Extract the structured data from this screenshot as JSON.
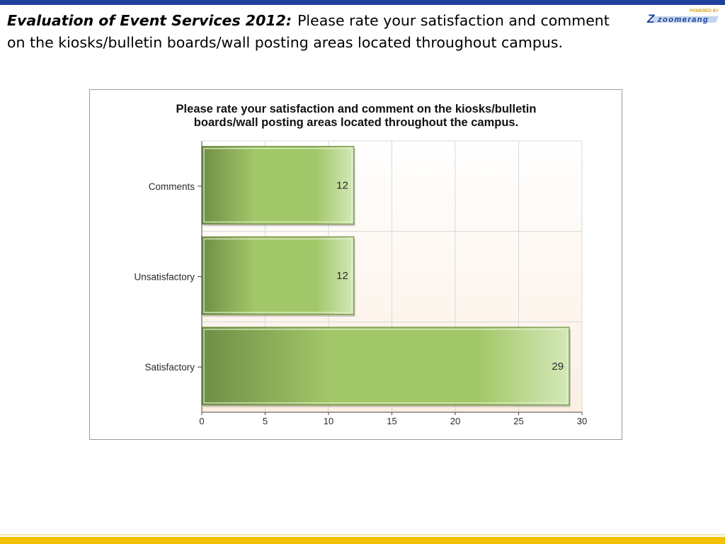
{
  "heading": {
    "lead": "Evaluation of Event Services 2012:",
    "text": "Please rate your satisfaction and comment on the kiosks/bulletin boards/wall posting areas located throughout campus."
  },
  "logo": {
    "powered_by": "POWERED BY",
    "brand": "zoomerang",
    "mark": "Z"
  },
  "colors": {
    "top_stripe": "#1f3f9a",
    "bottom_stripe": "#f2c200",
    "bar_dark": "#6f8e45",
    "bar_mid": "#a2c768",
    "bar_light": "#d4e8b8",
    "plot_bg_top": "#ffffff",
    "plot_bg_bottom": "#fcefe3",
    "grid": "#d9d9d9"
  },
  "chart_data": {
    "type": "bar",
    "orientation": "horizontal",
    "title_lines": [
      "Please rate your satisfaction and comment on the kiosks/bulletin",
      "boards/wall posting areas located throughout the campus."
    ],
    "categories": [
      "Comments",
      "Unsatisfactory",
      "Satisfactory"
    ],
    "values": [
      12,
      12,
      29
    ],
    "xlim": [
      0,
      30
    ],
    "xticks": [
      0,
      5,
      10,
      15,
      20,
      25,
      30
    ],
    "grid": true,
    "xlabel": "",
    "ylabel": ""
  }
}
